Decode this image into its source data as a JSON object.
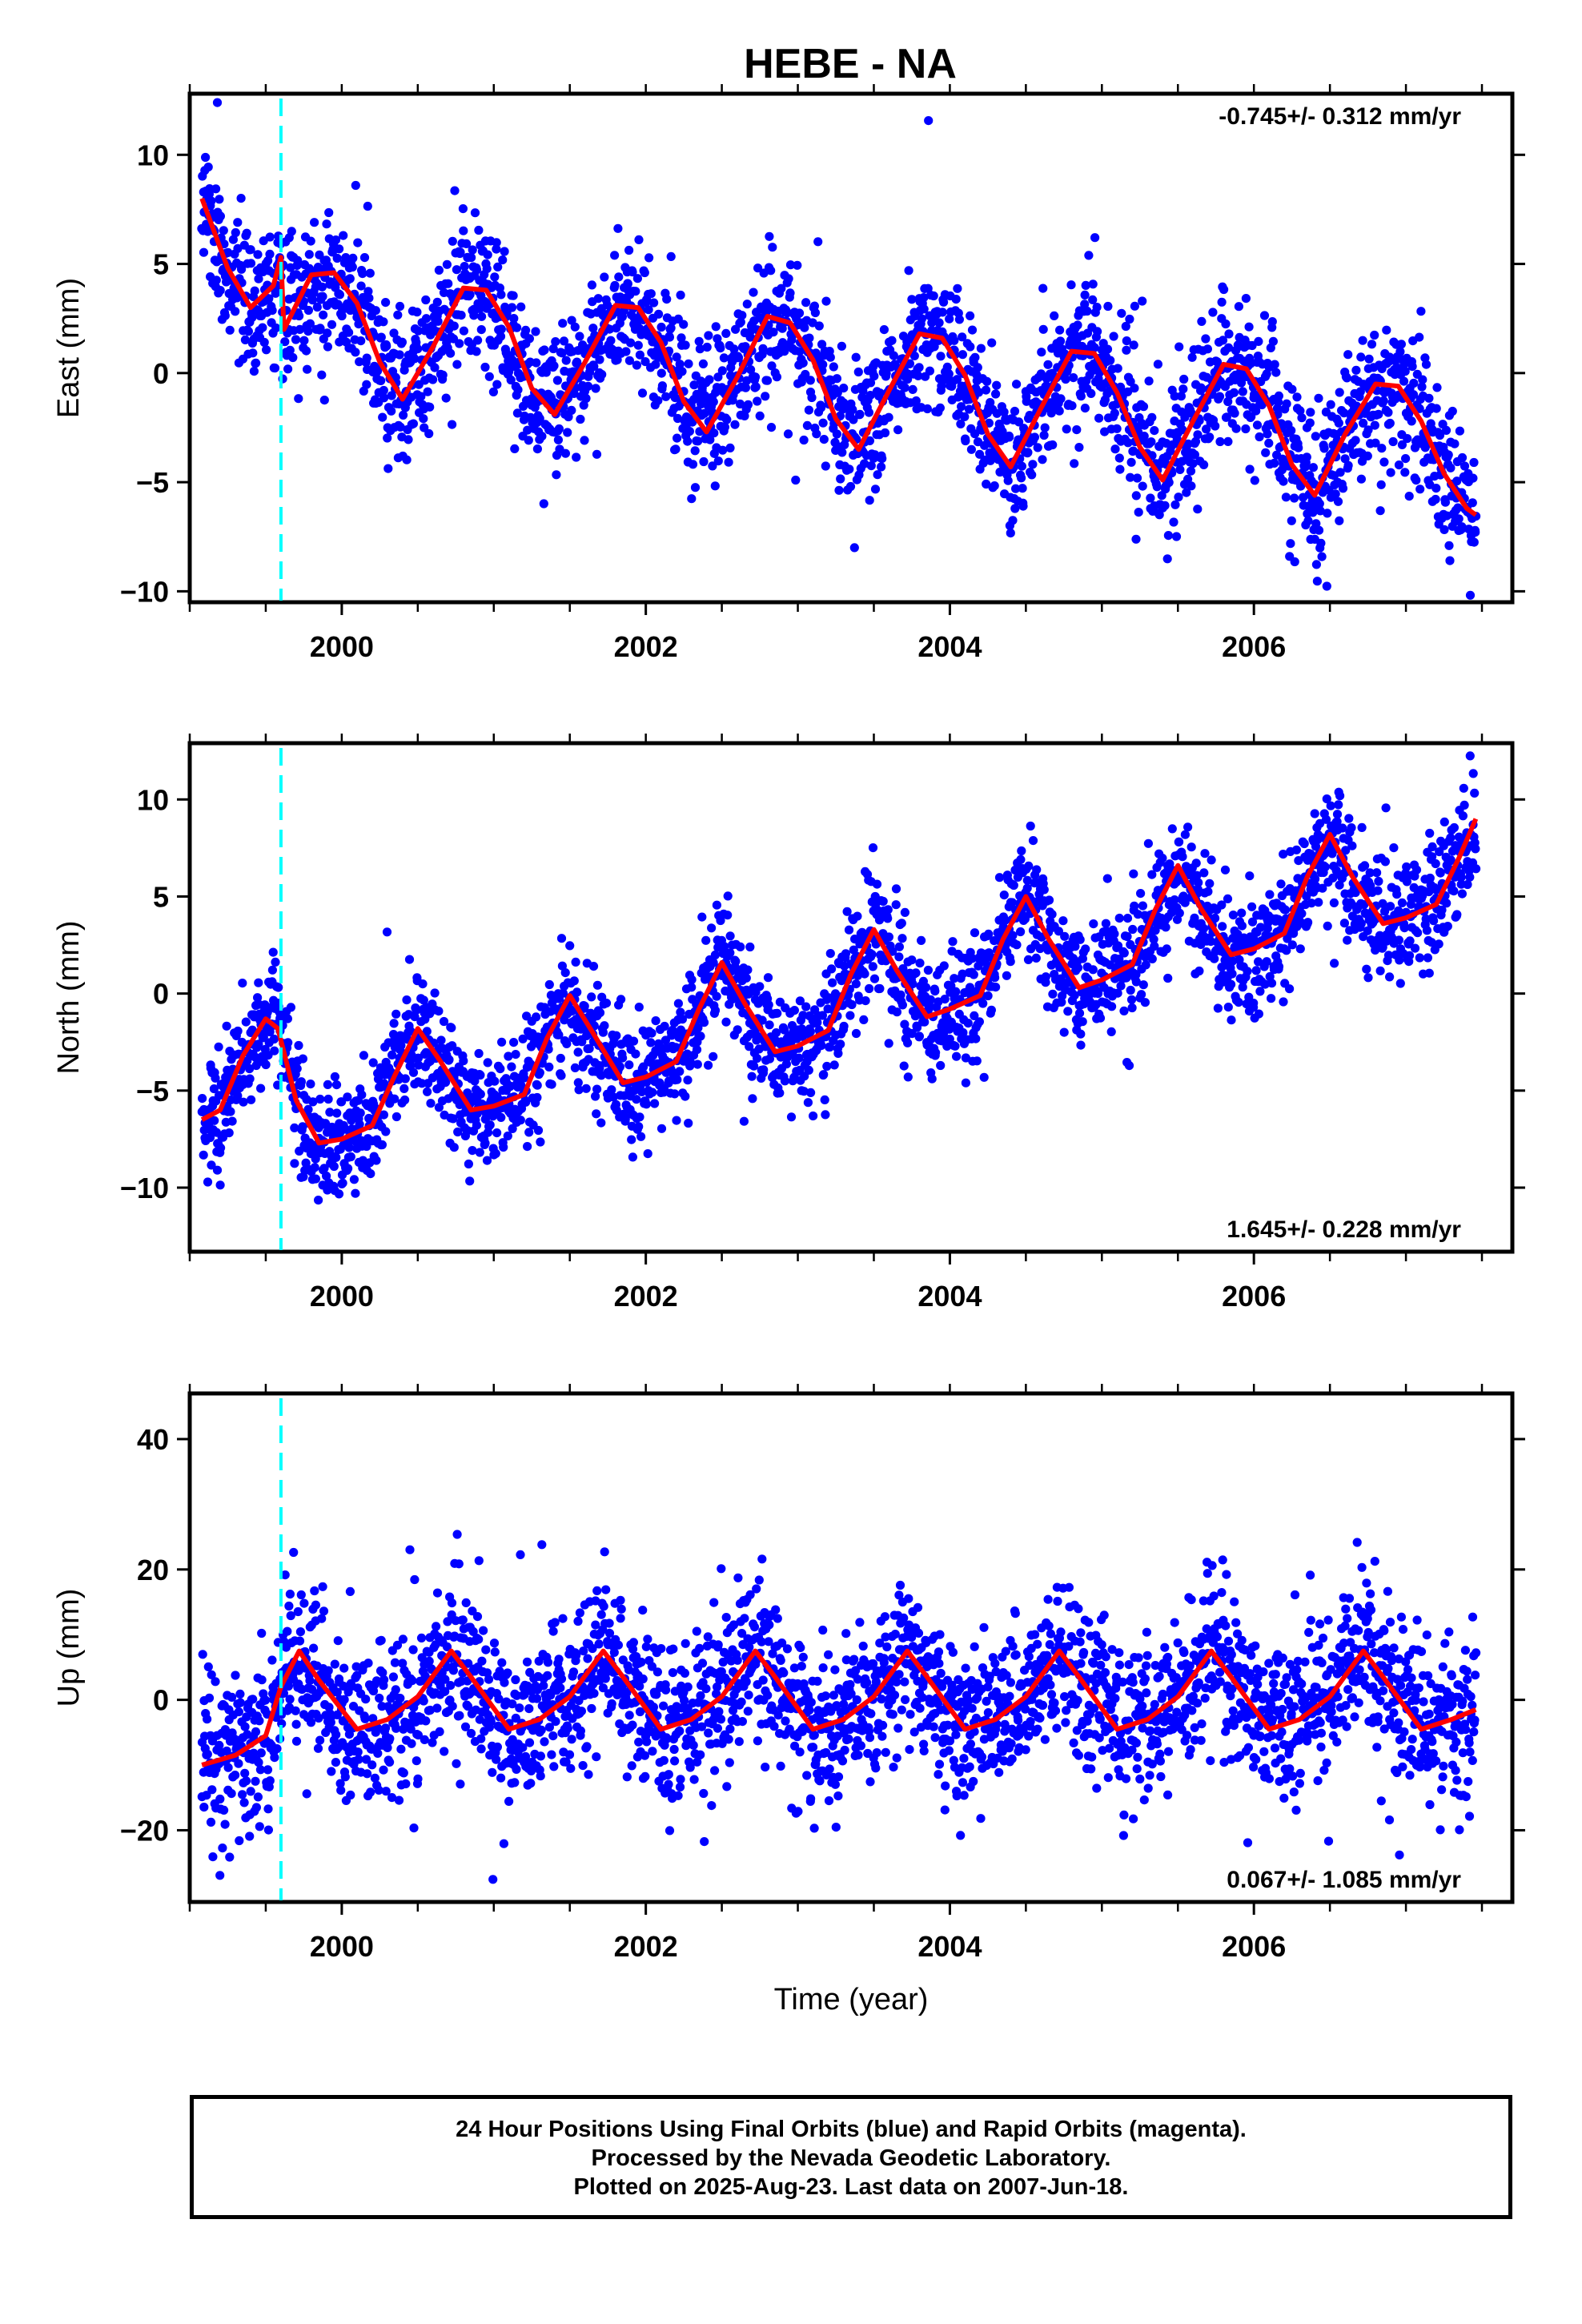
{
  "title": "HEBE - NA",
  "footer": {
    "line1": "24 Hour Positions Using Final Orbits (blue) and Rapid Orbits (magenta).",
    "line2": "Processed by the Nevada Geodetic Laboratory.",
    "line3": "Plotted on 2025-Aug-23. Last data on 2007-Jun-18."
  },
  "colors": {
    "points": "#0000ff",
    "model": "#ff0000",
    "event_line": "#00ffff",
    "frame": "#000000"
  },
  "chart_data": [
    {
      "type": "scatter",
      "component": "east",
      "ylabel": "East (mm)",
      "xlabel": "",
      "rate_label": "-0.745+/- 0.312 mm/yr",
      "rate_label_position": "top-right",
      "xlim": [
        1999.0,
        2007.7
      ],
      "ylim": [
        -10.5,
        12.8
      ],
      "xticks": [
        2000,
        2002,
        2004,
        2006
      ],
      "yticks": [
        -10,
        -5,
        0,
        5,
        10
      ],
      "event_line_x": 1999.6,
      "x_start": 1999.08,
      "x_end": 2007.46,
      "model": {
        "x": [
          1999.08,
          1999.25,
          1999.4,
          1999.55,
          1999.6,
          1999.62,
          1999.8,
          1999.95,
          2000.1,
          2000.25,
          2000.4,
          2000.6,
          2000.8,
          2000.95,
          2001.1,
          2001.25,
          2001.4,
          2001.6,
          2001.8,
          2001.95,
          2002.1,
          2002.25,
          2002.4,
          2002.6,
          2002.8,
          2002.95,
          2003.1,
          2003.25,
          2003.4,
          2003.6,
          2003.8,
          2003.95,
          2004.1,
          2004.25,
          2004.4,
          2004.6,
          2004.8,
          2004.95,
          2005.1,
          2005.25,
          2005.4,
          2005.6,
          2005.8,
          2005.95,
          2006.1,
          2006.25,
          2006.4,
          2006.6,
          2006.8,
          2006.95,
          2007.1,
          2007.25,
          2007.4,
          2007.46
        ],
        "y": [
          8.0,
          4.8,
          3.0,
          4.0,
          5.3,
          2.0,
          4.5,
          4.6,
          3.2,
          0.5,
          -1.2,
          1.2,
          3.9,
          3.8,
          2.1,
          -0.7,
          -1.9,
          0.5,
          3.1,
          3.0,
          1.4,
          -1.3,
          -2.7,
          -0.2,
          2.6,
          2.3,
          0.6,
          -2.1,
          -3.5,
          -0.8,
          1.8,
          1.6,
          -0.1,
          -2.8,
          -4.3,
          -1.6,
          1.0,
          0.9,
          -0.9,
          -3.4,
          -4.9,
          -2.2,
          0.4,
          0.2,
          -1.5,
          -4.2,
          -5.6,
          -2.8,
          -0.5,
          -0.6,
          -2.2,
          -4.6,
          -6.2,
          -6.5
        ]
      },
      "amplitude": 3.0,
      "noise": 1.6,
      "num_points": 2650
    },
    {
      "type": "scatter",
      "component": "north",
      "ylabel": "North (mm)",
      "xlabel": "",
      "rate_label": "1.645+/- 0.228 mm/yr",
      "rate_label_position": "bottom-right",
      "xlim": [
        1999.0,
        2007.7
      ],
      "ylim": [
        -13.3,
        12.9
      ],
      "xticks": [
        2000,
        2002,
        2004,
        2006
      ],
      "yticks": [
        -10,
        -5,
        0,
        5,
        10
      ],
      "event_line_x": 1999.6,
      "x_start": 1999.08,
      "x_end": 2007.46,
      "model": {
        "x": [
          1999.08,
          1999.2,
          1999.35,
          1999.5,
          1999.58,
          1999.7,
          1999.85,
          2000.0,
          2000.2,
          2000.35,
          2000.5,
          2000.65,
          2000.85,
          2001.0,
          2001.2,
          2001.35,
          2001.5,
          2001.65,
          2001.85,
          2002.0,
          2002.2,
          2002.35,
          2002.5,
          2002.65,
          2002.85,
          2003.0,
          2003.2,
          2003.35,
          2003.5,
          2003.65,
          2003.85,
          2004.0,
          2004.2,
          2004.35,
          2004.5,
          2004.65,
          2004.85,
          2005.0,
          2005.2,
          2005.35,
          2005.5,
          2005.65,
          2005.85,
          2006.0,
          2006.2,
          2006.35,
          2006.5,
          2006.65,
          2006.85,
          2007.0,
          2007.2,
          2007.35,
          2007.46
        ],
        "y": [
          -6.5,
          -6.0,
          -3.2,
          -1.3,
          -1.8,
          -5.5,
          -7.7,
          -7.5,
          -6.8,
          -4.2,
          -1.8,
          -3.5,
          -6.0,
          -5.8,
          -5.2,
          -2.3,
          -0.1,
          -2.0,
          -4.6,
          -4.3,
          -3.5,
          -0.8,
          1.6,
          -0.5,
          -3.0,
          -2.7,
          -1.9,
          1.0,
          3.3,
          1.2,
          -1.2,
          -0.8,
          -0.1,
          2.8,
          5.0,
          2.8,
          0.3,
          0.7,
          1.5,
          4.3,
          6.6,
          4.4,
          2.0,
          2.3,
          3.1,
          6.0,
          8.2,
          6.0,
          3.6,
          3.9,
          4.6,
          7.0,
          9.0
        ]
      },
      "amplitude": 3.0,
      "noise": 1.5,
      "num_points": 2650
    },
    {
      "type": "scatter",
      "component": "up",
      "ylabel": "Up (mm)",
      "xlabel": "Time (year)",
      "rate_label": "0.067+/- 1.085 mm/yr",
      "rate_label_position": "bottom-right",
      "xlim": [
        1999.0,
        2007.7
      ],
      "ylim": [
        -31,
        47
      ],
      "xticks": [
        2000,
        2002,
        2004,
        2006
      ],
      "yticks": [
        -20,
        0,
        20,
        40
      ],
      "event_line_x": 1999.6,
      "x_start": 1999.08,
      "x_end": 2007.46,
      "model": {
        "x": [
          1999.08,
          1999.3,
          1999.5,
          1999.6,
          1999.72,
          1999.85,
          2000.1,
          2000.3,
          2000.5,
          2000.72,
          2000.85,
          2001.1,
          2001.3,
          2001.5,
          2001.72,
          2001.85,
          2002.1,
          2002.3,
          2002.5,
          2002.72,
          2002.85,
          2003.1,
          2003.3,
          2003.5,
          2003.72,
          2003.85,
          2004.1,
          2004.3,
          2004.5,
          2004.72,
          2004.85,
          2005.1,
          2005.3,
          2005.5,
          2005.72,
          2005.85,
          2006.1,
          2006.3,
          2006.5,
          2006.72,
          2006.85,
          2007.1,
          2007.3,
          2007.46
        ],
        "y": [
          -10.0,
          -8.5,
          -5.5,
          2.0,
          7.5,
          3.0,
          -4.5,
          -3.0,
          0.5,
          7.5,
          3.5,
          -4.5,
          -3.0,
          0.5,
          7.5,
          3.5,
          -4.5,
          -3.0,
          0.5,
          7.5,
          3.5,
          -4.5,
          -3.0,
          0.5,
          7.5,
          3.5,
          -4.5,
          -3.0,
          0.5,
          7.5,
          3.5,
          -4.5,
          -3.0,
          0.5,
          7.5,
          3.5,
          -4.5,
          -3.0,
          0.5,
          7.5,
          3.5,
          -4.5,
          -3.0,
          -1.5
        ]
      },
      "amplitude": 6.0,
      "noise": 6.0,
      "num_points": 2650
    }
  ]
}
